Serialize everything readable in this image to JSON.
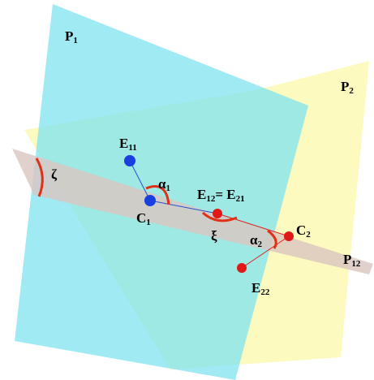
{
  "labels": {
    "p1": [
      {
        "text": "P",
        "sub": "1"
      }
    ],
    "p2": [
      {
        "text": "P",
        "sub": "2"
      }
    ],
    "p12": [
      {
        "text": "P",
        "sub": "12"
      }
    ],
    "e11": [
      {
        "text": "E",
        "sub": "11"
      }
    ],
    "e12": [
      {
        "text": "E",
        "sub": "12"
      },
      {
        "text": "= E",
        "sub": "21"
      }
    ],
    "c1": [
      {
        "text": "C",
        "sub": "1"
      }
    ],
    "c2": [
      {
        "text": "C",
        "sub": "2"
      }
    ],
    "e22": [
      {
        "text": "E",
        "sub": "22"
      }
    ],
    "zeta": [
      {
        "text": "ζ"
      }
    ],
    "xi": [
      {
        "text": "ξ"
      }
    ],
    "alpha1": [
      {
        "text": "α",
        "sub": "1"
      }
    ],
    "alpha2": [
      {
        "text": "α",
        "sub": "2"
      }
    ]
  }
}
